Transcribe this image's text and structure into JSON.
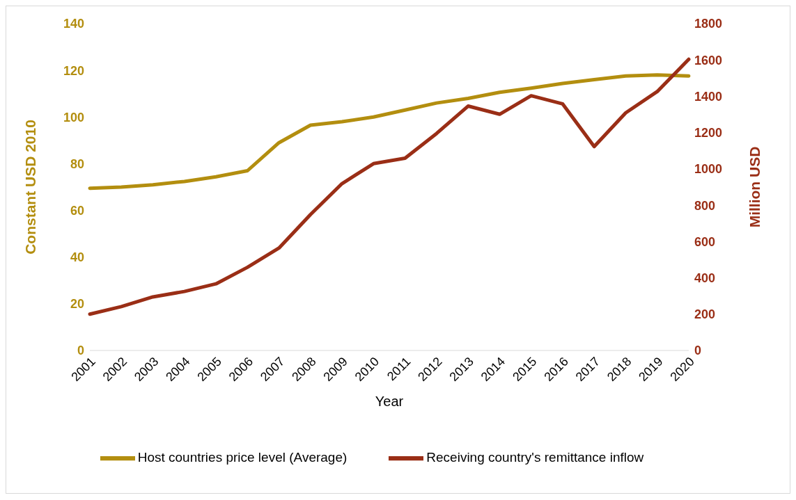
{
  "chart_data": {
    "type": "line",
    "xlabel": "Year",
    "ylabel": "Constant USD 2010",
    "y2label": "Million USD",
    "categories": [
      "2001",
      "2002",
      "2003",
      "2004",
      "2005",
      "2006",
      "2007",
      "2008",
      "2009",
      "2010",
      "2011",
      "2012",
      "2013",
      "2014",
      "2015",
      "2016",
      "2017",
      "2018",
      "2019",
      "2020"
    ],
    "series": [
      {
        "name": "Host countries price level (Average)",
        "color": "#b38e0f",
        "values": [
          69.5,
          70,
          71,
          72.4,
          74.4,
          77,
          89,
          96.5,
          98,
          100,
          103,
          106,
          108,
          110.6,
          112.4,
          114.4,
          116,
          117.6,
          118,
          117.6
        ]
      },
      {
        "name": "Receiving country's remittance inflow",
        "color": "#9a2e16",
        "axis": "y2",
        "values": [
          200,
          242,
          295,
          325,
          367,
          458,
          564,
          749,
          919,
          1029,
          1059,
          1195,
          1346,
          1301,
          1403,
          1358,
          1123,
          1309,
          1426,
          1604
        ]
      }
    ],
    "ylim": [
      0,
      140
    ],
    "yticks": [
      0,
      20,
      40,
      60,
      80,
      100,
      120,
      140
    ],
    "y2lim": [
      0,
      1800
    ],
    "y2ticks": [
      0,
      200,
      400,
      600,
      800,
      1000,
      1200,
      1400,
      1600,
      1800
    ],
    "grid": false,
    "legend": "bottom",
    "marker": "none",
    "line_style": "solid"
  }
}
